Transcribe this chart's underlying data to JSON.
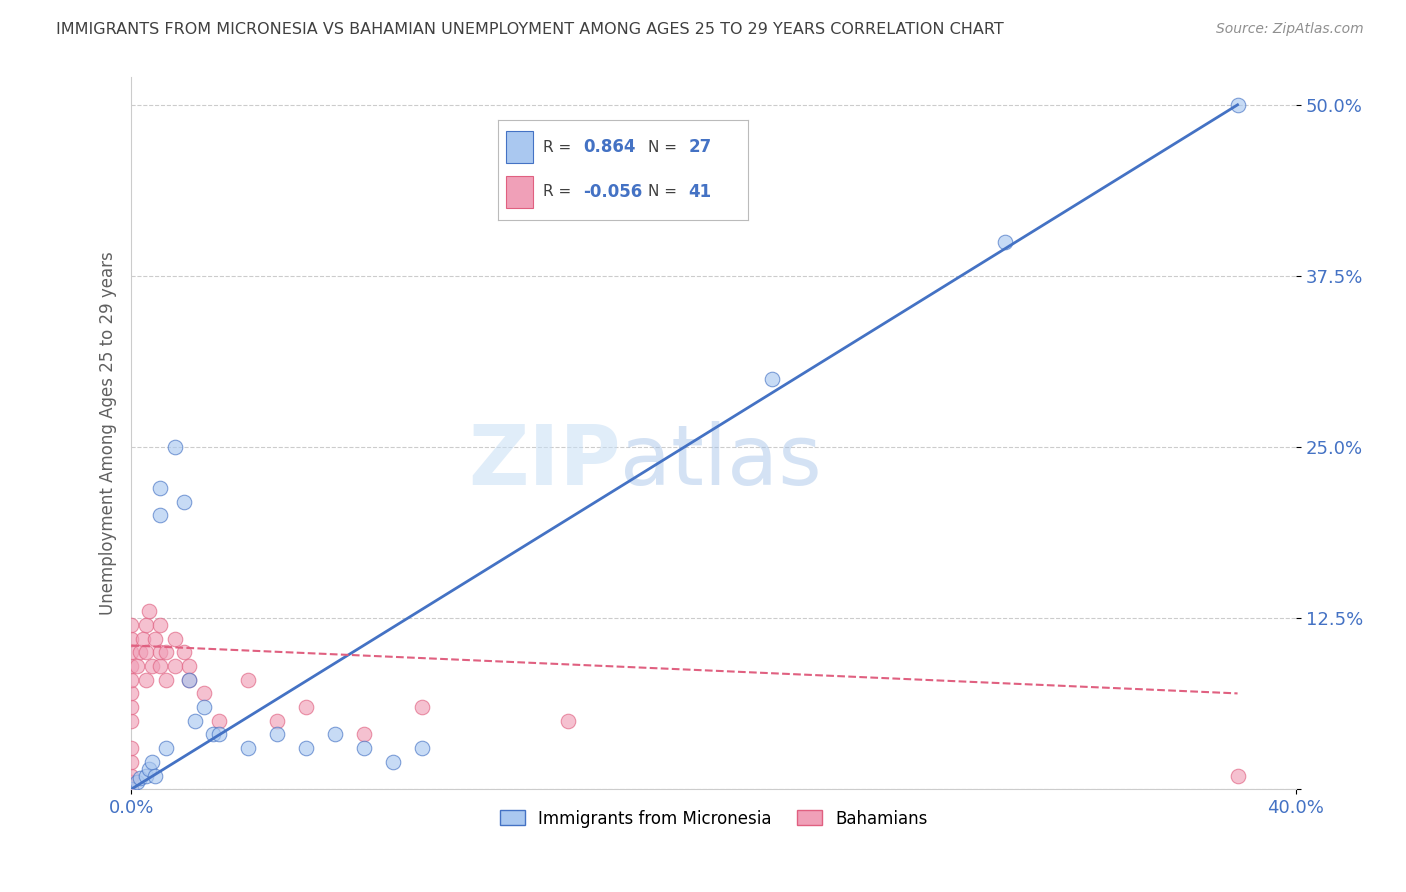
{
  "title": "IMMIGRANTS FROM MICRONESIA VS BAHAMIAN UNEMPLOYMENT AMONG AGES 25 TO 29 YEARS CORRELATION CHART",
  "source": "Source: ZipAtlas.com",
  "ylabel": "Unemployment Among Ages 25 to 29 years",
  "xlim": [
    0.0,
    0.4
  ],
  "ylim": [
    0.0,
    0.52
  ],
  "yticks": [
    0.0,
    0.125,
    0.25,
    0.375,
    0.5
  ],
  "ytick_labels": [
    "",
    "12.5%",
    "25.0%",
    "37.5%",
    "50.0%"
  ],
  "xtick_labels": [
    "0.0%",
    "40.0%"
  ],
  "blue_R": 0.864,
  "blue_N": 27,
  "pink_R": -0.056,
  "pink_N": 41,
  "watermark_zip": "ZIP",
  "watermark_atlas": "atlas",
  "legend_blue": "Immigrants from Micronesia",
  "legend_pink": "Bahamians",
  "blue_color": "#aac8f0",
  "pink_color": "#f0a0b8",
  "blue_line_color": "#4472c4",
  "pink_line_color": "#e06080",
  "title_color": "#404040",
  "stat_color": "#4472c4",
  "blue_scatter": [
    [
      0.0,
      0.0
    ],
    [
      0.002,
      0.005
    ],
    [
      0.003,
      0.008
    ],
    [
      0.005,
      0.01
    ],
    [
      0.006,
      0.015
    ],
    [
      0.007,
      0.02
    ],
    [
      0.008,
      0.01
    ],
    [
      0.01,
      0.2
    ],
    [
      0.01,
      0.22
    ],
    [
      0.012,
      0.03
    ],
    [
      0.015,
      0.25
    ],
    [
      0.018,
      0.21
    ],
    [
      0.02,
      0.08
    ],
    [
      0.022,
      0.05
    ],
    [
      0.025,
      0.06
    ],
    [
      0.028,
      0.04
    ],
    [
      0.03,
      0.04
    ],
    [
      0.04,
      0.03
    ],
    [
      0.05,
      0.04
    ],
    [
      0.06,
      0.03
    ],
    [
      0.07,
      0.04
    ],
    [
      0.08,
      0.03
    ],
    [
      0.09,
      0.02
    ],
    [
      0.1,
      0.03
    ],
    [
      0.22,
      0.3
    ],
    [
      0.3,
      0.4
    ],
    [
      0.38,
      0.5
    ]
  ],
  "pink_scatter": [
    [
      0.0,
      0.0
    ],
    [
      0.0,
      0.005
    ],
    [
      0.0,
      0.01
    ],
    [
      0.0,
      0.02
    ],
    [
      0.0,
      0.03
    ],
    [
      0.0,
      0.05
    ],
    [
      0.0,
      0.06
    ],
    [
      0.0,
      0.07
    ],
    [
      0.0,
      0.08
    ],
    [
      0.0,
      0.09
    ],
    [
      0.0,
      0.1
    ],
    [
      0.0,
      0.11
    ],
    [
      0.0,
      0.12
    ],
    [
      0.002,
      0.09
    ],
    [
      0.003,
      0.1
    ],
    [
      0.004,
      0.11
    ],
    [
      0.005,
      0.08
    ],
    [
      0.005,
      0.1
    ],
    [
      0.005,
      0.12
    ],
    [
      0.006,
      0.13
    ],
    [
      0.007,
      0.09
    ],
    [
      0.008,
      0.11
    ],
    [
      0.01,
      0.09
    ],
    [
      0.01,
      0.1
    ],
    [
      0.01,
      0.12
    ],
    [
      0.012,
      0.08
    ],
    [
      0.012,
      0.1
    ],
    [
      0.015,
      0.09
    ],
    [
      0.015,
      0.11
    ],
    [
      0.018,
      0.1
    ],
    [
      0.02,
      0.08
    ],
    [
      0.02,
      0.09
    ],
    [
      0.025,
      0.07
    ],
    [
      0.03,
      0.05
    ],
    [
      0.04,
      0.08
    ],
    [
      0.05,
      0.05
    ],
    [
      0.06,
      0.06
    ],
    [
      0.08,
      0.04
    ],
    [
      0.1,
      0.06
    ],
    [
      0.15,
      0.05
    ],
    [
      0.38,
      0.01
    ]
  ],
  "blue_line": [
    [
      0.0,
      0.0
    ],
    [
      0.38,
      0.5
    ]
  ],
  "pink_line": [
    [
      0.0,
      0.105
    ],
    [
      0.38,
      0.07
    ]
  ]
}
